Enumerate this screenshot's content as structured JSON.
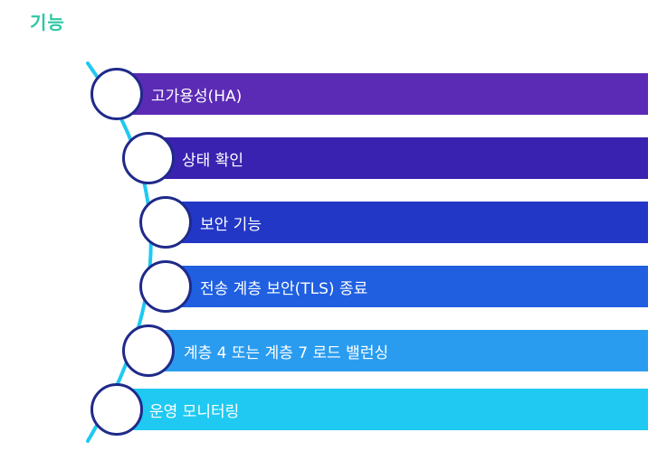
{
  "title": "기능",
  "items": [
    {
      "label": "고가용성(HA)",
      "color": "#5b2bb5"
    },
    {
      "label": "상태 확인",
      "color": "#3a22b0"
    },
    {
      "label": "보안 기능",
      "color": "#2237c6"
    },
    {
      "label": "전송 계층 보안(TLS) 종료",
      "color": "#1f5fe0"
    },
    {
      "label": "계층 4 또는 계층 7 로드 밸런싱",
      "color": "#2a9cf0"
    },
    {
      "label": "운영 모니터링",
      "color": "#1fc9f2"
    }
  ],
  "colors": {
    "title": "#2fc7a5",
    "arc": "#1fc9f2",
    "circle_border": "#1f2a8a"
  }
}
